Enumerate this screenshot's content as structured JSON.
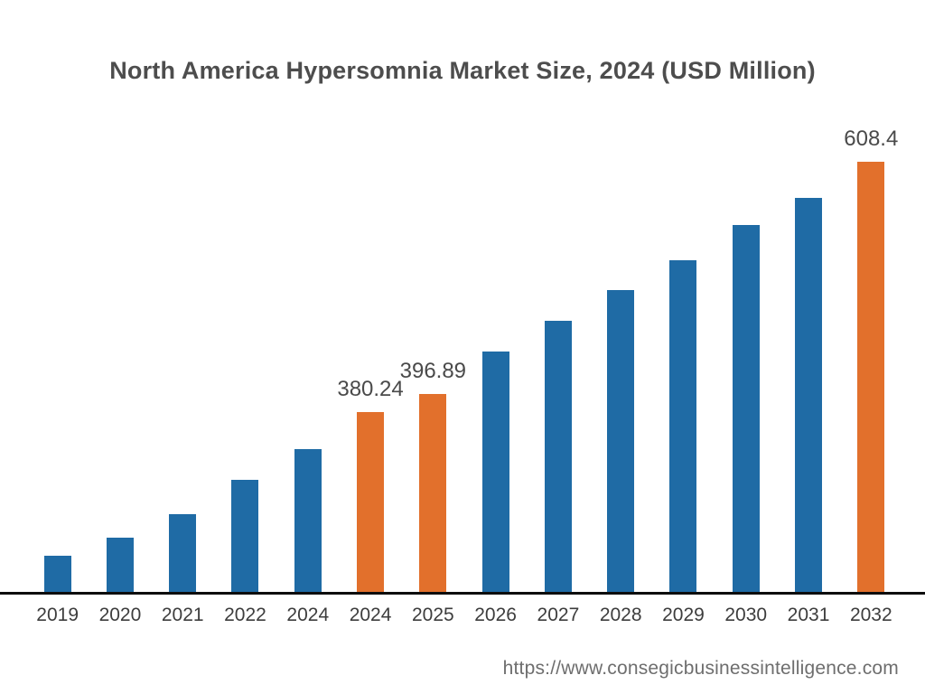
{
  "header": {
    "title": "North America Hypersomnia Market Size, 2024 (USD Million)"
  },
  "footer": {
    "source_url": "https://www.consegicbusinessintelligence.com"
  },
  "chart_data": {
    "type": "bar",
    "title": "North America Hypersomnia Market Size, 2024 (USD Million)",
    "xlabel": "",
    "ylabel": "",
    "unit": "USD Million",
    "grid": false,
    "legend": "none",
    "y_axis": "hidden",
    "categories": [
      "2019",
      "2020",
      "2021",
      "2022",
      "2024",
      "2024",
      "2025",
      "2026",
      "2027",
      "2028",
      "2029",
      "2030",
      "2031",
      "2032"
    ],
    "values": [
      249.1,
      265.6,
      287.0,
      318.3,
      346.3,
      380.24,
      396.89,
      435.2,
      463.2,
      491.2,
      518.4,
      550.5,
      575.2,
      608.4
    ],
    "value_labels": [
      null,
      null,
      null,
      null,
      null,
      "380.24",
      "396.89",
      null,
      null,
      null,
      null,
      null,
      null,
      "608.4"
    ],
    "highlighted_indices": [
      5,
      6,
      13
    ],
    "colors": {
      "bar_default": "#1F6BA5",
      "bar_highlight": "#E2702C",
      "axis_line": "#0D0D0D"
    }
  }
}
